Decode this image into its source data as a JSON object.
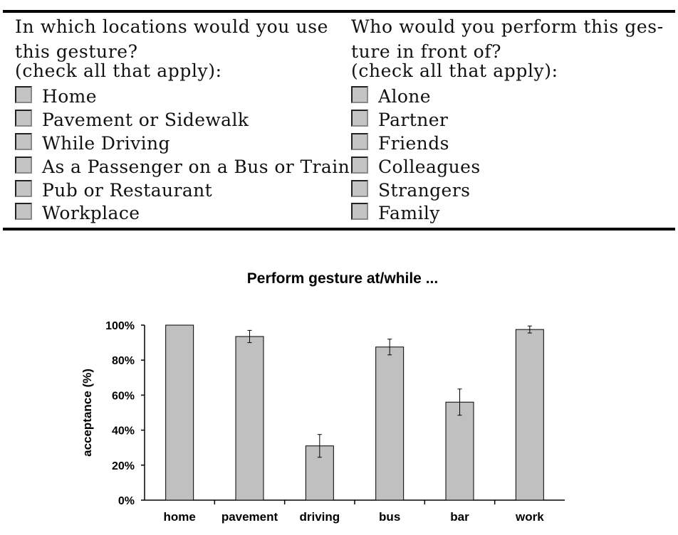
{
  "survey": {
    "left_question": [
      "In which locations would you use",
      "this gesture?",
      "(check all that apply):"
    ],
    "left_options": [
      "Home",
      "Pavement or Sidewalk",
      "While Driving",
      "As a Passenger on a Bus or Train",
      "Pub or Restaurant",
      "Workplace"
    ],
    "right_question": [
      "Who would you perform this ges-",
      "ture in front of?",
      "(check all that apply):"
    ],
    "right_options": [
      "Alone",
      "Partner",
      "Friends",
      "Colleagues",
      "Strangers",
      "Family"
    ]
  },
  "chart_data": {
    "type": "bar",
    "title": "Perform gesture at/while ...",
    "xlabel": "",
    "ylabel": "acceptance (%)",
    "categories": [
      "home",
      "pavement",
      "driving",
      "bus",
      "bar",
      "work"
    ],
    "values": [
      100,
      93.5,
      31,
      87.5,
      56,
      97.5
    ],
    "error": [
      0,
      3.5,
      6.5,
      4.5,
      7.5,
      2
    ],
    "ylim": [
      0,
      100
    ],
    "yticks": [
      "0%",
      "20%",
      "40%",
      "60%",
      "80%",
      "100%"
    ],
    "bar_color": "#c0c0c0",
    "grid": false,
    "legend": "none"
  }
}
